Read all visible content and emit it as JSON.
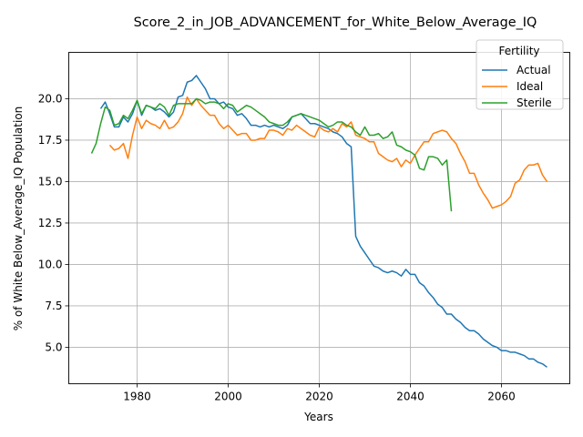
{
  "chart_data": {
    "type": "line",
    "title": "Score_2_in_JOB_ADVANCEMENT_for_White_Below_Average_IQ",
    "xlabel": "Years",
    "ylabel": "% of White Below_Average_IQ Population",
    "xlim": [
      1965,
      2075
    ],
    "ylim": [
      2.8,
      22.8
    ],
    "xticks": [
      1980,
      2000,
      2020,
      2040,
      2060
    ],
    "yticks": [
      5.0,
      7.5,
      10.0,
      12.5,
      15.0,
      17.5,
      20.0
    ],
    "xtick_labels": [
      "1980",
      "2000",
      "2020",
      "2040",
      "2060"
    ],
    "ytick_labels": [
      "5.0",
      "7.5",
      "10.0",
      "12.5",
      "15.0",
      "17.5",
      "20.0"
    ],
    "grid": true,
    "legend": {
      "title": "Fertility",
      "position": "top-right"
    },
    "series": [
      {
        "name": "Actual",
        "color": "#1f77b4",
        "x": [
          1972,
          1973,
          1974,
          1975,
          1976,
          1977,
          1978,
          1979,
          1980,
          1981,
          1982,
          1983,
          1984,
          1985,
          1986,
          1987,
          1988,
          1989,
          1990,
          1991,
          1992,
          1993,
          1994,
          1995,
          1996,
          1997,
          1998,
          1999,
          2000,
          2001,
          2002,
          2003,
          2004,
          2005,
          2006,
          2007,
          2008,
          2009,
          2010,
          2011,
          2012,
          2013,
          2014,
          2015,
          2016,
          2017,
          2018,
          2019,
          2020,
          2021,
          2022,
          2023,
          2024,
          2025,
          2026,
          2027,
          2028,
          2029,
          2030,
          2031,
          2032,
          2033,
          2034,
          2035,
          2036,
          2037,
          2038,
          2039,
          2040,
          2041,
          2042,
          2043,
          2044,
          2045,
          2046,
          2047,
          2048,
          2049,
          2050,
          2051,
          2052,
          2053,
          2054,
          2055,
          2056,
          2057,
          2058,
          2059,
          2060,
          2061,
          2062,
          2063,
          2064,
          2065,
          2066,
          2067,
          2068,
          2069,
          2070
        ],
        "y": [
          19.4,
          19.8,
          19.1,
          18.3,
          18.3,
          18.9,
          18.6,
          19.1,
          19.9,
          19.0,
          19.6,
          19.5,
          19.3,
          19.4,
          19.2,
          18.9,
          19.2,
          20.1,
          20.2,
          21.0,
          21.1,
          21.4,
          21.0,
          20.6,
          20.0,
          20.0,
          19.7,
          19.8,
          19.5,
          19.4,
          19.0,
          19.1,
          18.8,
          18.4,
          18.4,
          18.3,
          18.4,
          18.3,
          18.4,
          18.3,
          18.2,
          18.4,
          18.9,
          19.0,
          19.1,
          18.8,
          18.5,
          18.5,
          18.4,
          18.3,
          18.2,
          18.0,
          17.9,
          17.7,
          17.3,
          17.1,
          11.7,
          11.1,
          10.7,
          10.3,
          9.9,
          9.8,
          9.6,
          9.5,
          9.6,
          9.5,
          9.3,
          9.7,
          9.4,
          9.4,
          8.9,
          8.7,
          8.3,
          8.0,
          7.6,
          7.4,
          7.0,
          7.0,
          6.7,
          6.5,
          6.2,
          6.0,
          6.0,
          5.8,
          5.5,
          5.3,
          5.1,
          5.0,
          4.8,
          4.8,
          4.7,
          4.7,
          4.6,
          4.5,
          4.3,
          4.3,
          4.1,
          4.0,
          3.8
        ]
      },
      {
        "name": "Ideal",
        "color": "#ff7f0e",
        "x": [
          1974,
          1975,
          1976,
          1977,
          1978,
          1979,
          1980,
          1981,
          1982,
          1983,
          1984,
          1985,
          1986,
          1987,
          1988,
          1989,
          1990,
          1991,
          1992,
          1993,
          1994,
          1995,
          1996,
          1997,
          1998,
          1999,
          2000,
          2001,
          2002,
          2003,
          2004,
          2005,
          2006,
          2007,
          2008,
          2009,
          2010,
          2011,
          2012,
          2013,
          2014,
          2015,
          2016,
          2017,
          2018,
          2019,
          2020,
          2021,
          2022,
          2023,
          2024,
          2025,
          2026,
          2027,
          2028,
          2029,
          2030,
          2031,
          2032,
          2033,
          2034,
          2035,
          2036,
          2037,
          2038,
          2039,
          2040,
          2041,
          2042,
          2043,
          2044,
          2045,
          2046,
          2047,
          2048,
          2049,
          2050,
          2051,
          2052,
          2053,
          2054,
          2055,
          2056,
          2057,
          2058,
          2059,
          2060,
          2061,
          2062,
          2063,
          2064,
          2065,
          2066,
          2067,
          2068,
          2069,
          2070
        ],
        "y": [
          17.2,
          16.9,
          17.0,
          17.3,
          16.4,
          17.8,
          18.9,
          18.2,
          18.7,
          18.5,
          18.4,
          18.2,
          18.7,
          18.2,
          18.3,
          18.6,
          19.1,
          20.1,
          19.6,
          20.0,
          19.6,
          19.3,
          19.0,
          19.0,
          18.5,
          18.2,
          18.4,
          18.1,
          17.8,
          17.9,
          17.9,
          17.5,
          17.5,
          17.6,
          17.6,
          18.1,
          18.1,
          18.0,
          17.8,
          18.2,
          18.1,
          18.4,
          18.2,
          18.0,
          17.8,
          17.7,
          18.3,
          18.1,
          18.0,
          18.2,
          18.0,
          18.5,
          18.3,
          18.6,
          17.8,
          17.7,
          17.6,
          17.4,
          17.4,
          16.7,
          16.5,
          16.3,
          16.2,
          16.4,
          15.9,
          16.3,
          16.1,
          16.6,
          17.0,
          17.4,
          17.4,
          17.9,
          18.0,
          18.1,
          18.0,
          17.6,
          17.3,
          16.7,
          16.2,
          15.5,
          15.5,
          14.8,
          14.3,
          13.9,
          13.4,
          13.5,
          13.6,
          13.8,
          14.1,
          14.9,
          15.1,
          15.7,
          16.0,
          16.0,
          16.1,
          15.4,
          15.0
        ]
      },
      {
        "name": "Sterile",
        "color": "#2ca02c",
        "x": [
          1970,
          1971,
          1972,
          1973,
          1974,
          1975,
          1976,
          1977,
          1978,
          1979,
          1980,
          1981,
          1982,
          1983,
          1984,
          1985,
          1986,
          1987,
          1988,
          1989,
          1990,
          1991,
          1992,
          1993,
          1994,
          1995,
          1996,
          1997,
          1998,
          1999,
          2000,
          2001,
          2002,
          2003,
          2004,
          2005,
          2006,
          2007,
          2008,
          2009,
          2010,
          2011,
          2012,
          2013,
          2014,
          2015,
          2016,
          2017,
          2018,
          2019,
          2020,
          2021,
          2022,
          2023,
          2024,
          2025,
          2026,
          2027,
          2028,
          2029,
          2030,
          2031,
          2032,
          2033,
          2034,
          2035,
          2036,
          2037,
          2038,
          2039,
          2040,
          2041,
          2042,
          2043,
          2044,
          2045,
          2046,
          2047,
          2048,
          2049
        ],
        "y": [
          16.7,
          17.3,
          18.5,
          19.5,
          19.3,
          18.4,
          18.5,
          19.0,
          18.8,
          19.3,
          19.9,
          19.1,
          19.6,
          19.5,
          19.4,
          19.7,
          19.5,
          19.0,
          19.6,
          19.7,
          19.7,
          19.7,
          19.7,
          20.0,
          19.9,
          19.7,
          19.8,
          19.8,
          19.7,
          19.4,
          19.7,
          19.6,
          19.2,
          19.4,
          19.6,
          19.5,
          19.3,
          19.1,
          18.9,
          18.6,
          18.5,
          18.4,
          18.4,
          18.6,
          18.9,
          19.0,
          19.1,
          19.0,
          18.9,
          18.8,
          18.7,
          18.5,
          18.3,
          18.4,
          18.6,
          18.6,
          18.4,
          18.3,
          18.0,
          17.8,
          18.3,
          17.8,
          17.8,
          17.9,
          17.6,
          17.7,
          18.0,
          17.2,
          17.1,
          16.9,
          16.8,
          16.6,
          15.8,
          15.7,
          16.5,
          16.5,
          16.4,
          16.0,
          16.3,
          13.2
        ]
      }
    ]
  }
}
